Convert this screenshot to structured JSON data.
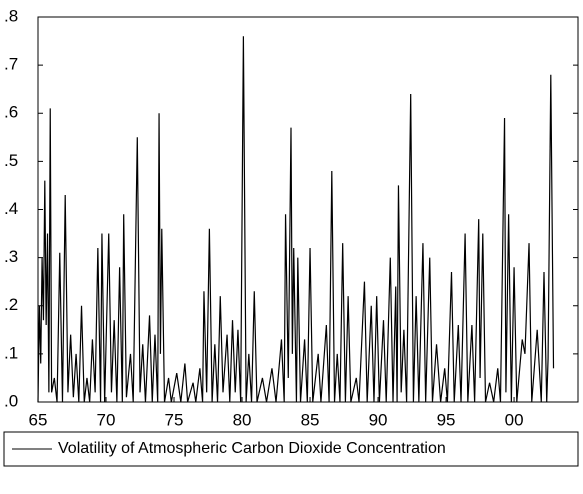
{
  "chart_data": {
    "type": "line",
    "x": [
      1965.0,
      1965.1,
      1965.2,
      1965.3,
      1965.4,
      1965.5,
      1965.6,
      1965.7,
      1965.8,
      1965.9,
      1966.0,
      1966.2,
      1966.4,
      1966.6,
      1966.8,
      1967.0,
      1967.2,
      1967.4,
      1967.6,
      1967.8,
      1968.0,
      1968.2,
      1968.4,
      1968.6,
      1968.8,
      1969.0,
      1969.2,
      1969.4,
      1969.6,
      1969.7,
      1969.9,
      1970.2,
      1970.4,
      1970.6,
      1970.8,
      1971.0,
      1971.2,
      1971.3,
      1971.5,
      1971.8,
      1972.0,
      1972.3,
      1972.5,
      1972.7,
      1972.9,
      1973.2,
      1973.4,
      1973.6,
      1973.8,
      1973.9,
      1974.0,
      1974.1,
      1974.3,
      1974.6,
      1974.8,
      1975.2,
      1975.5,
      1975.8,
      1976.0,
      1976.4,
      1976.6,
      1976.9,
      1977.1,
      1977.2,
      1977.4,
      1977.6,
      1977.8,
      1978.0,
      1978.2,
      1978.4,
      1978.6,
      1978.9,
      1979.1,
      1979.3,
      1979.5,
      1979.7,
      1979.9,
      1980.1,
      1980.3,
      1980.5,
      1980.7,
      1980.9,
      1981.1,
      1981.5,
      1981.8,
      1982.2,
      1982.5,
      1982.9,
      1983.1,
      1983.2,
      1983.4,
      1983.6,
      1983.7,
      1983.8,
      1984.0,
      1984.1,
      1984.3,
      1984.6,
      1984.8,
      1985.0,
      1985.2,
      1985.6,
      1985.8,
      1986.2,
      1986.4,
      1986.6,
      1986.8,
      1987.0,
      1987.2,
      1987.4,
      1987.6,
      1987.8,
      1988.0,
      1988.4,
      1988.6,
      1989.0,
      1989.2,
      1989.5,
      1989.7,
      1989.9,
      1990.1,
      1990.4,
      1990.6,
      1990.9,
      1991.1,
      1991.3,
      1991.4,
      1991.5,
      1991.7,
      1991.9,
      1992.1,
      1992.4,
      1992.6,
      1992.8,
      1993.0,
      1993.3,
      1993.5,
      1993.8,
      1994.0,
      1994.3,
      1994.6,
      1994.9,
      1995.1,
      1995.4,
      1995.6,
      1995.9,
      1996.1,
      1996.4,
      1996.6,
      1996.9,
      1997.1,
      1997.4,
      1997.5,
      1997.7,
      1997.9,
      1998.2,
      1998.5,
      1998.8,
      1999.0,
      1999.3,
      1999.4,
      1999.6,
      1999.8,
      2000.0,
      2000.2,
      2000.6,
      2000.8,
      2001.1,
      2001.3,
      2001.7,
      2002.0,
      2002.2,
      2002.4,
      2002.5,
      2002.7,
      2002.9
    ],
    "series": [
      {
        "name": "Volatility of Atmospheric Carbon Dioxide Concentration",
        "color": "#000000",
        "values": [
          0.0,
          0.2,
          0.08,
          0.3,
          0.17,
          0.46,
          0.16,
          0.35,
          0.02,
          0.61,
          0.02,
          0.05,
          0.0,
          0.31,
          0.0,
          0.43,
          0.02,
          0.14,
          0.01,
          0.1,
          0.0,
          0.2,
          0.0,
          0.05,
          0.0,
          0.13,
          0.02,
          0.32,
          0.0,
          0.35,
          0.0,
          0.35,
          0.02,
          0.17,
          0.0,
          0.28,
          0.0,
          0.39,
          0.01,
          0.1,
          0.0,
          0.55,
          0.02,
          0.12,
          0.0,
          0.18,
          0.0,
          0.14,
          0.0,
          0.6,
          0.1,
          0.36,
          0.0,
          0.05,
          0.0,
          0.06,
          0.0,
          0.08,
          0.0,
          0.04,
          0.0,
          0.07,
          0.0,
          0.23,
          0.02,
          0.36,
          0.0,
          0.12,
          0.0,
          0.22,
          0.02,
          0.14,
          0.0,
          0.17,
          0.02,
          0.15,
          0.0,
          0.76,
          0.0,
          0.1,
          0.0,
          0.23,
          0.0,
          0.05,
          0.0,
          0.07,
          0.0,
          0.13,
          0.0,
          0.39,
          0.05,
          0.57,
          0.1,
          0.32,
          0.0,
          0.3,
          0.0,
          0.13,
          0.0,
          0.32,
          0.0,
          0.1,
          0.0,
          0.16,
          0.0,
          0.48,
          0.0,
          0.1,
          0.0,
          0.33,
          0.0,
          0.22,
          0.0,
          0.05,
          0.0,
          0.25,
          0.0,
          0.2,
          0.0,
          0.22,
          0.0,
          0.17,
          0.0,
          0.3,
          0.0,
          0.24,
          0.0,
          0.45,
          0.02,
          0.15,
          0.0,
          0.64,
          0.0,
          0.22,
          0.0,
          0.33,
          0.0,
          0.3,
          0.0,
          0.12,
          0.0,
          0.07,
          0.0,
          0.27,
          0.0,
          0.16,
          0.0,
          0.35,
          0.0,
          0.16,
          0.0,
          0.38,
          0.05,
          0.35,
          0.0,
          0.04,
          0.0,
          0.07,
          0.0,
          0.59,
          0.02,
          0.39,
          0.0,
          0.28,
          0.0,
          0.13,
          0.1,
          0.33,
          0.0,
          0.15,
          0.0,
          0.27,
          0.0,
          0.09,
          0.68,
          0.07
        ]
      }
    ],
    "xlim": [
      1965,
      2004.7
    ],
    "xticks": [
      {
        "value": 1965,
        "label": "65"
      },
      {
        "value": 1970,
        "label": "70"
      },
      {
        "value": 1975,
        "label": "75"
      },
      {
        "value": 1980,
        "label": "80"
      },
      {
        "value": 1985,
        "label": "85"
      },
      {
        "value": 1990,
        "label": "90"
      },
      {
        "value": 1995,
        "label": "95"
      },
      {
        "value": 2000,
        "label": "00"
      }
    ],
    "ylim": [
      0,
      0.8
    ],
    "yticks": [
      {
        "value": 0,
        "label": ".0"
      },
      {
        "value": 0.1,
        "label": ".1"
      },
      {
        "value": 0.2,
        "label": ".2"
      },
      {
        "value": 0.3,
        "label": ".3"
      },
      {
        "value": 0.4,
        "label": ".4"
      },
      {
        "value": 0.5,
        "label": ".5"
      },
      {
        "value": 0.6,
        "label": ".6"
      },
      {
        "value": 0.7,
        "label": ".7"
      },
      {
        "value": 0.8,
        "label": ".8"
      }
    ],
    "grid": false
  }
}
